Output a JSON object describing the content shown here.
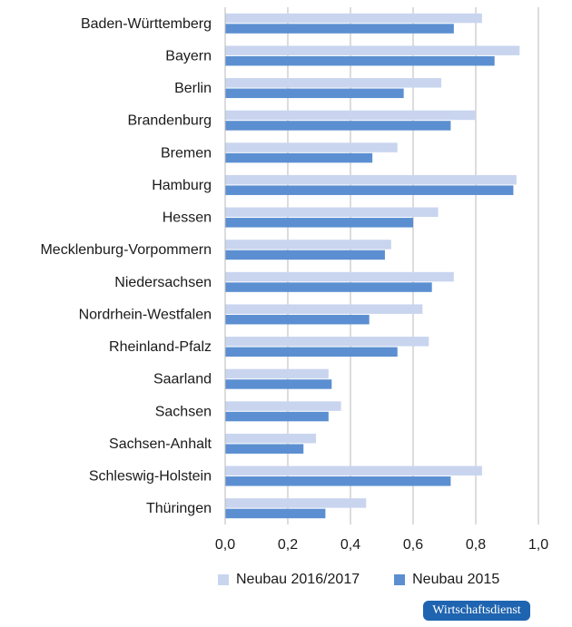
{
  "chart_data": {
    "type": "bar",
    "orientation": "horizontal",
    "categories": [
      "Baden-Württemberg",
      "Bayern",
      "Berlin",
      "Brandenburg",
      "Bremen",
      "Hamburg",
      "Hessen",
      "Mecklenburg-Vorpommern",
      "Niedersachsen",
      "Nordrhein-Westfalen",
      "Rheinland-Pfalz",
      "Saarland",
      "Sachsen",
      "Sachsen-Anhalt",
      "Schleswig-Holstein",
      "Thüringen"
    ],
    "series": [
      {
        "name": "Neubau 2016/2017",
        "color": "#c9d5ef",
        "values": [
          0.82,
          0.94,
          0.69,
          0.8,
          0.55,
          0.93,
          0.68,
          0.53,
          0.73,
          0.63,
          0.65,
          0.33,
          0.37,
          0.29,
          0.82,
          0.45
        ]
      },
      {
        "name": "Neubau 2015",
        "color": "#5b8fd1",
        "values": [
          0.73,
          0.86,
          0.57,
          0.72,
          0.47,
          0.92,
          0.6,
          0.51,
          0.66,
          0.46,
          0.55,
          0.34,
          0.33,
          0.25,
          0.72,
          0.32
        ]
      }
    ],
    "xlim": [
      0.0,
      1.0
    ],
    "x_ticks": [
      "0,0",
      "0,2",
      "0,4",
      "0,6",
      "0,8",
      "1,0"
    ],
    "grid": "vertical",
    "legend_position": "bottom"
  },
  "brand": {
    "label": "Wirtschaftsdienst",
    "color": "#1f64b0"
  }
}
